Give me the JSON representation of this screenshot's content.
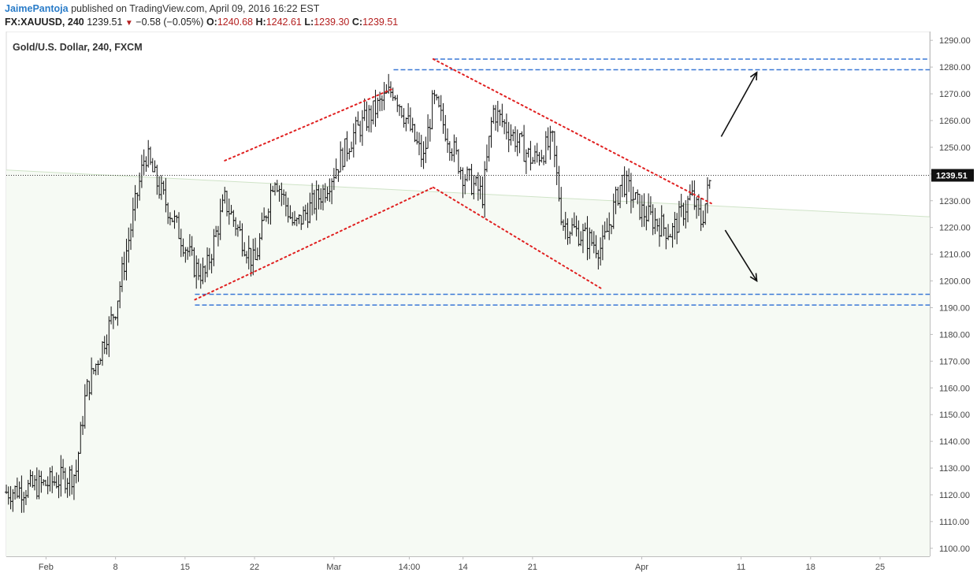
{
  "header": {
    "author": "JaimePantoja",
    "published_text": "published on TradingView.com, April 09, 2016 16:22 EST",
    "symbol": "FX:XAUUSD, 240",
    "last": "1239.51",
    "change_arrow": "▼",
    "change": "−0.58 (−0.05%)",
    "o_label": "O:",
    "o_value": "1240.68",
    "h_label": "H:",
    "h_value": "1242.61",
    "l_label": "L:",
    "l_value": "1239.30",
    "c_label": "C:",
    "c_value": "1239.51"
  },
  "colors": {
    "bars": "#111111",
    "dotted_red": "#e02020",
    "dashed_blue": "#3a78d6",
    "accent_blue": "#2a7cc8",
    "price_badge_bg": "#111111",
    "price_badge_text": "#ffffff"
  },
  "chart_data": {
    "type": "ohlc",
    "title": "Gold/U.S. Dollar, 240, FXCM",
    "ylim": [
      1100,
      1290
    ],
    "yticks": [
      1100,
      1110,
      1120,
      1130,
      1140,
      1150,
      1160,
      1170,
      1180,
      1190,
      1200,
      1210,
      1220,
      1230,
      1240,
      1250,
      1260,
      1270,
      1280,
      1290
    ],
    "ytick_labels": [
      "1100.00",
      "1110.00",
      "1120.00",
      "1130.00",
      "1140.00",
      "1150.00",
      "1160.00",
      "1170.00",
      "1180.00",
      "1190.00",
      "1200.00",
      "1210.00",
      "1220.00",
      "1230.00",
      "1240.00",
      "1250.00",
      "1260.00",
      "1270.00",
      "1280.00",
      "1290.00"
    ],
    "xticks": [
      {
        "label": "Feb",
        "date": "2016-02-01"
      },
      {
        "label": "8",
        "date": "2016-02-08"
      },
      {
        "label": "15",
        "date": "2016-02-15"
      },
      {
        "label": "22",
        "date": "2016-02-22"
      },
      {
        "label": "Mar",
        "date": "2016-03-01"
      },
      {
        "label": "14:00",
        "date": "2016-03-08 14:00"
      },
      {
        "label": "14",
        "date": "2016-03-14"
      },
      {
        "label": "21",
        "date": "2016-03-21"
      },
      {
        "label": "Apr",
        "date": "2016-04-01"
      },
      {
        "label": "11",
        "date": "2016-04-11"
      },
      {
        "label": "18",
        "date": "2016-04-18"
      },
      {
        "label": "25",
        "date": "2016-04-25"
      }
    ],
    "xlim": [
      "2016-01-28",
      "2016-04-30"
    ],
    "last_price": 1239.51,
    "last_price_label": "1239.51",
    "key_points": [
      {
        "date": "2016-01-28",
        "close": 1121
      },
      {
        "date": "2016-02-01",
        "close": 1124
      },
      {
        "date": "2016-02-04",
        "close": 1128
      },
      {
        "date": "2016-02-05",
        "close": 1158
      },
      {
        "date": "2016-02-08",
        "close": 1190
      },
      {
        "date": "2016-02-11",
        "close": 1248
      },
      {
        "date": "2016-02-12",
        "close": 1238
      },
      {
        "date": "2016-02-16",
        "close": 1205
      },
      {
        "date": "2016-02-17",
        "close": 1202
      },
      {
        "date": "2016-02-19",
        "close": 1230
      },
      {
        "date": "2016-02-22",
        "close": 1206
      },
      {
        "date": "2016-02-24",
        "close": 1240
      },
      {
        "date": "2016-02-26",
        "close": 1220
      },
      {
        "date": "2016-02-29",
        "close": 1234
      },
      {
        "date": "2016-03-03",
        "close": 1255
      },
      {
        "date": "2016-03-07",
        "close": 1272
      },
      {
        "date": "2016-03-10",
        "close": 1245
      },
      {
        "date": "2016-03-11",
        "close": 1268
      },
      {
        "date": "2016-03-14",
        "close": 1240
      },
      {
        "date": "2016-03-16",
        "close": 1232
      },
      {
        "date": "2016-03-17",
        "close": 1264
      },
      {
        "date": "2016-03-21",
        "close": 1245
      },
      {
        "date": "2016-03-23",
        "close": 1252
      },
      {
        "date": "2016-03-24",
        "close": 1222
      },
      {
        "date": "2016-03-28",
        "close": 1212
      },
      {
        "date": "2016-03-30",
        "close": 1238
      },
      {
        "date": "2016-04-01",
        "close": 1226
      },
      {
        "date": "2016-04-04",
        "close": 1218
      },
      {
        "date": "2016-04-06",
        "close": 1232
      },
      {
        "date": "2016-04-07",
        "close": 1222
      },
      {
        "date": "2016-04-08",
        "close": 1239.51
      }
    ],
    "horizontal_levels": [
      1283,
      1279,
      1195,
      1191
    ],
    "trend_lines": [
      {
        "style": "dotted",
        "from": {
          "date": "2016-02-19",
          "price": 1245
        },
        "to": {
          "date": "2016-03-07",
          "price": 1272
        }
      },
      {
        "style": "dotted",
        "from": {
          "date": "2016-02-16",
          "price": 1193
        },
        "to": {
          "date": "2016-03-11",
          "price": 1235
        }
      },
      {
        "style": "dotted",
        "from": {
          "date": "2016-03-11",
          "price": 1283
        },
        "to": {
          "date": "2016-04-08",
          "price": 1229
        }
      },
      {
        "style": "dotted",
        "from": {
          "date": "2016-03-11",
          "price": 1235
        },
        "to": {
          "date": "2016-03-28",
          "price": 1197
        }
      }
    ],
    "arrows": [
      {
        "direction": "up",
        "from": {
          "date": "2016-04-09",
          "price": 1254
        },
        "to": {
          "date": "2016-04-11",
          "price": 1278
        }
      },
      {
        "direction": "down",
        "from": {
          "date": "2016-04-09",
          "price": 1219
        },
        "to": {
          "date": "2016-04-11",
          "price": 1200
        }
      }
    ]
  }
}
